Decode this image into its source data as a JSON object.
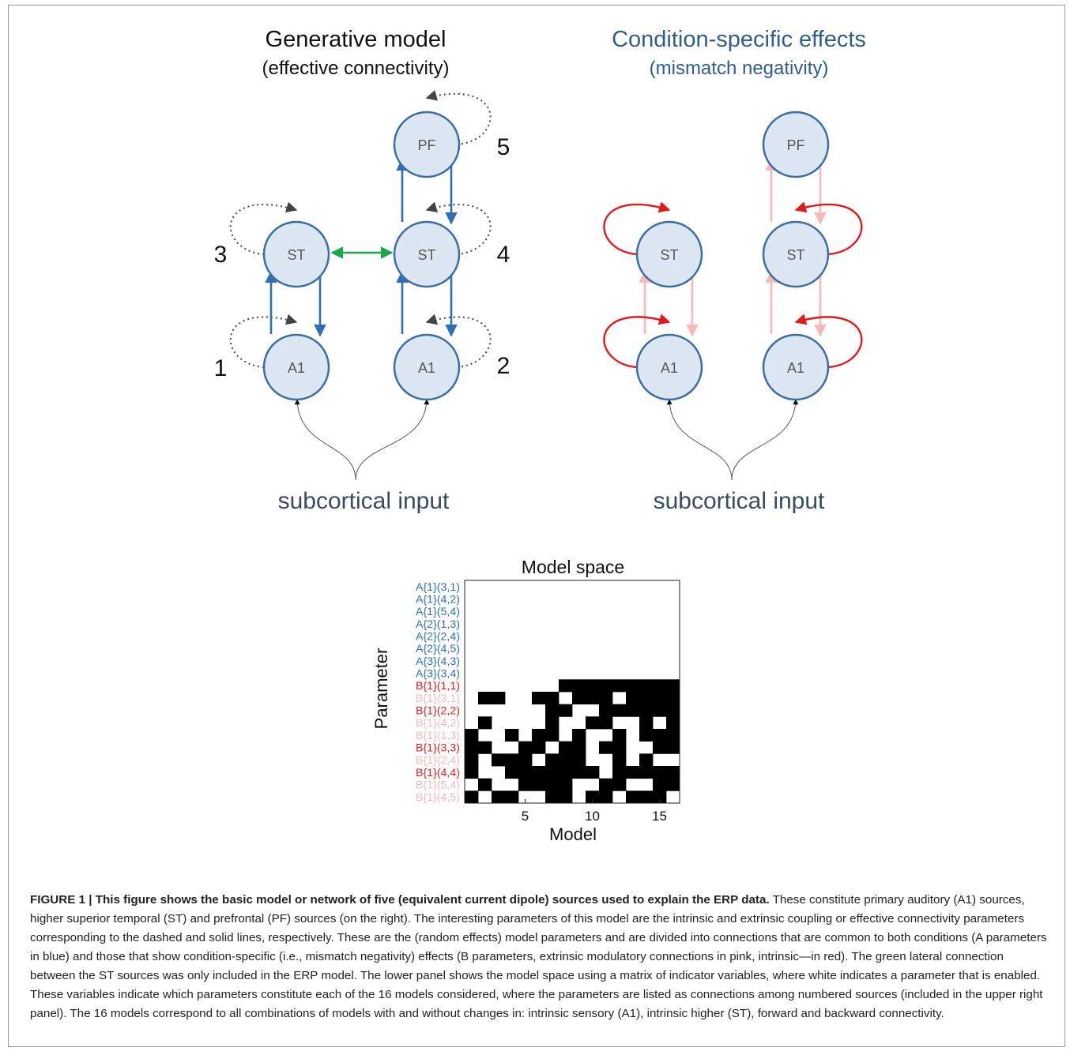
{
  "left_panel": {
    "title": "Generative model",
    "subtitle": "(effective connectivity)",
    "input_label": "subcortical input",
    "source_numbers": [
      "1",
      "2",
      "3",
      "4",
      "5"
    ],
    "nodes": [
      "A1",
      "A1",
      "ST",
      "ST",
      "PF"
    ]
  },
  "right_panel": {
    "title": "Condition-specific effects",
    "subtitle": "(mismatch negativity)",
    "input_label": "subcortical input",
    "nodes": [
      "A1",
      "A1",
      "ST",
      "ST",
      "PF"
    ]
  },
  "colors": {
    "node_fill": "#dce7f3",
    "node_stroke": "#3a6ea5",
    "forward_backward": "#2e6fb5",
    "lateral": "#1aa64a",
    "intrinsic_dotted": "#444444",
    "modulatory_extrinsic": "#f6b8b8",
    "modulatory_intrinsic": "#e31a1c",
    "right_title": "#2f5d8c"
  },
  "chart_data": {
    "type": "heatmap",
    "title": "Model space",
    "xlabel": "Model",
    "ylabel": "Parameter",
    "x_ticks": [
      5,
      10,
      15
    ],
    "x_range": [
      1,
      16
    ],
    "legend_note": "white = parameter enabled",
    "parameters": [
      {
        "label": "A{1}(3,1)",
        "color": "#2e6fb5"
      },
      {
        "label": "A{1}(4,2)",
        "color": "#2e6fb5"
      },
      {
        "label": "A{1}(5,4)",
        "color": "#2e6fb5"
      },
      {
        "label": "A{2}(1,3)",
        "color": "#2e6fb5"
      },
      {
        "label": "A{2}(2,4)",
        "color": "#2e6fb5"
      },
      {
        "label": "A{2}(4,5)",
        "color": "#2e6fb5"
      },
      {
        "label": "A{3}(4,3)",
        "color": "#2e6fb5"
      },
      {
        "label": "A{3}(3,4)",
        "color": "#2e6fb5"
      },
      {
        "label": "B{1}(1,1)",
        "color": "#e31a1c"
      },
      {
        "label": "B{1}(3,1)",
        "color": "#f6b8b8"
      },
      {
        "label": "B{1}(2,2)",
        "color": "#e31a1c"
      },
      {
        "label": "B{1}(4,2)",
        "color": "#f6b8b8"
      },
      {
        "label": "B{1}(1,3)",
        "color": "#f6b8b8"
      },
      {
        "label": "B{1}(3,3)",
        "color": "#e31a1c"
      },
      {
        "label": "B{1}(2,4)",
        "color": "#f6b8b8"
      },
      {
        "label": "B{1}(4,4)",
        "color": "#e31a1c"
      },
      {
        "label": "B{1}(5,4)",
        "color": "#f6b8b8"
      },
      {
        "label": "B{1}(4,5)",
        "color": "#f6b8b8"
      }
    ],
    "matrix": [
      [
        1,
        1,
        1,
        1,
        1,
        1,
        1,
        1,
        1,
        1,
        1,
        1,
        1,
        1,
        1,
        1
      ],
      [
        1,
        1,
        1,
        1,
        1,
        1,
        1,
        1,
        1,
        1,
        1,
        1,
        1,
        1,
        1,
        1
      ],
      [
        1,
        1,
        1,
        1,
        1,
        1,
        1,
        1,
        1,
        1,
        1,
        1,
        1,
        1,
        1,
        1
      ],
      [
        1,
        1,
        1,
        1,
        1,
        1,
        1,
        1,
        1,
        1,
        1,
        1,
        1,
        1,
        1,
        1
      ],
      [
        1,
        1,
        1,
        1,
        1,
        1,
        1,
        1,
        1,
        1,
        1,
        1,
        1,
        1,
        1,
        1
      ],
      [
        1,
        1,
        1,
        1,
        1,
        1,
        1,
        1,
        1,
        1,
        1,
        1,
        1,
        1,
        1,
        1
      ],
      [
        1,
        1,
        1,
        1,
        1,
        1,
        1,
        1,
        1,
        1,
        1,
        1,
        1,
        1,
        1,
        1
      ],
      [
        1,
        1,
        1,
        1,
        1,
        1,
        1,
        1,
        1,
        1,
        1,
        1,
        1,
        1,
        1,
        1
      ],
      [
        1,
        1,
        1,
        1,
        1,
        1,
        1,
        0,
        0,
        0,
        0,
        0,
        0,
        0,
        0,
        0
      ],
      [
        1,
        0,
        0,
        1,
        1,
        0,
        0,
        1,
        0,
        0,
        0,
        1,
        0,
        0,
        0,
        0
      ],
      [
        1,
        1,
        1,
        1,
        1,
        1,
        0,
        0,
        1,
        1,
        0,
        0,
        0,
        0,
        0,
        0
      ],
      [
        1,
        0,
        1,
        1,
        1,
        1,
        0,
        1,
        1,
        0,
        0,
        1,
        1,
        0,
        1,
        0
      ],
      [
        0,
        1,
        1,
        0,
        1,
        0,
        0,
        1,
        0,
        1,
        1,
        0,
        1,
        0,
        0,
        0
      ],
      [
        0,
        0,
        1,
        1,
        0,
        0,
        1,
        0,
        0,
        1,
        0,
        0,
        1,
        1,
        0,
        0
      ],
      [
        0,
        1,
        0,
        0,
        0,
        1,
        0,
        0,
        0,
        1,
        1,
        0,
        1,
        0,
        1,
        1
      ],
      [
        0,
        1,
        1,
        0,
        0,
        0,
        0,
        0,
        0,
        0,
        1,
        0,
        0,
        0,
        0,
        0
      ],
      [
        1,
        0,
        1,
        1,
        0,
        0,
        0,
        0,
        1,
        1,
        0,
        0,
        1,
        1,
        0,
        0
      ],
      [
        0,
        1,
        0,
        0,
        1,
        1,
        0,
        0,
        1,
        0,
        0,
        1,
        0,
        0,
        0,
        1
      ]
    ]
  },
  "caption": {
    "label": "FIGURE 1 | This figure shows the basic model or network of five (equivalent current dipole) sources used to explain the ERP data.",
    "text": "These constitute primary auditory (A1) sources, higher superior temporal (ST) and prefrontal (PF) sources (on the right). The interesting parameters of this model are the intrinsic and extrinsic coupling or effective connectivity parameters corresponding to the dashed and solid lines, respectively. These are the (random effects) model parameters and are divided into connections that are common to both conditions (A parameters in blue) and those that show condition-specific (i.e., mismatch negativity) effects (B parameters, extrinsic modulatory connections in pink, intrinsic—in red). The green lateral connection between the ST sources was only included in the ERP model. The lower panel shows the model space using a matrix of indicator variables, where white indicates a parameter that is enabled. These variables indicate which parameters constitute each of the 16 models considered, where the parameters are listed as connections among numbered sources (included in the upper right panel). The 16 models correspond to all combinations of models with and without changes in: intrinsic sensory (A1), intrinsic higher (ST), forward and backward connectivity."
  }
}
